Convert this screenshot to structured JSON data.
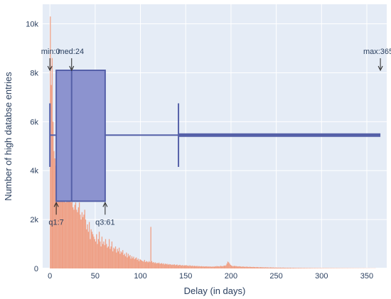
{
  "chart_data": {
    "type": "histogram_with_boxplot",
    "xlabel": "Delay (in days)",
    "ylabel": "Number of high databse entries",
    "xlim": [
      -8,
      372
    ],
    "ylim": [
      0,
      10800
    ],
    "x_ticks": [
      0,
      50,
      100,
      150,
      200,
      250,
      300,
      350
    ],
    "y_ticks": [
      0,
      2000,
      4000,
      6000,
      8000,
      10000
    ],
    "y_tick_labels": [
      "0",
      "2k",
      "4k",
      "6k",
      "8k",
      "10k"
    ],
    "grid": true,
    "colors": {
      "plot_bg": "#e5ecf6",
      "histogram": "#ef9f84",
      "box_fill": "#8c93cf",
      "box_line": "#5560a8",
      "text": "#2a3f5f"
    },
    "histogram": {
      "bin_width": 1,
      "x_start": 0,
      "values": [
        10300,
        7500,
        8600,
        6000,
        4800,
        4500,
        4200,
        3200,
        5800,
        4100,
        3500,
        3300,
        3100,
        3400,
        3000,
        2900,
        4000,
        2700,
        3100,
        2800,
        2900,
        3700,
        3200,
        2700,
        3500,
        2500,
        2400,
        2600,
        2700,
        2400,
        2300,
        2500,
        2700,
        2200,
        2000,
        2300,
        2100,
        2200,
        2400,
        2000,
        1600,
        1800,
        1500,
        1900,
        1200,
        1600,
        1500,
        1400,
        1300,
        1200,
        1100,
        1400,
        1000,
        1200,
        1500,
        1100,
        900,
        1300,
        1000,
        1100,
        950,
        1200,
        1000,
        850,
        900,
        1200,
        800,
        900,
        1100,
        700,
        850,
        800,
        900,
        650,
        800,
        700,
        850,
        600,
        700,
        650,
        750,
        550,
        600,
        500,
        650,
        450,
        600,
        500,
        550,
        400,
        500,
        420,
        480,
        380,
        420,
        450,
        350,
        400,
        300,
        380,
        350,
        320,
        300,
        280,
        350,
        260,
        300,
        280,
        250,
        300,
        260,
        1700,
        300,
        240,
        260,
        220,
        250,
        200,
        230,
        210,
        240,
        190,
        200,
        220,
        180,
        210,
        160,
        200,
        170,
        190,
        150,
        180,
        160,
        170,
        140,
        160,
        150,
        170,
        130,
        150,
        160,
        120,
        140,
        150,
        130,
        120,
        140,
        110,
        130,
        120,
        140,
        110,
        120,
        100,
        130,
        110,
        100,
        120,
        90,
        110,
        100,
        90,
        110,
        80,
        100,
        90,
        85,
        95,
        80,
        90,
        75,
        85,
        80,
        90,
        70,
        85,
        75,
        80,
        70,
        75,
        80,
        70,
        90,
        80,
        100,
        85,
        90,
        80,
        110,
        95,
        90,
        100,
        120,
        110,
        130,
        200,
        280,
        250,
        200,
        150,
        120,
        100,
        90,
        110,
        95,
        100,
        90,
        80,
        85,
        90,
        80,
        70,
        75,
        80,
        70,
        65,
        70,
        75,
        65,
        60,
        70,
        65,
        60,
        55,
        65,
        60,
        55,
        50,
        60,
        55,
        50,
        45,
        55,
        50,
        45,
        50,
        40,
        45,
        50,
        40,
        45,
        40,
        35,
        45,
        40,
        35,
        40,
        35,
        30,
        40,
        35,
        30,
        35,
        30,
        35,
        30,
        28,
        35,
        30,
        28,
        30,
        25,
        30,
        28,
        25,
        30,
        25,
        22,
        28,
        25,
        22,
        25,
        22,
        20,
        25,
        22,
        20,
        22,
        20,
        18,
        22,
        20,
        18,
        20,
        18,
        16,
        20,
        18,
        16,
        18,
        16,
        15,
        18,
        16,
        15,
        16,
        15,
        14,
        16,
        15,
        14,
        15,
        14,
        13,
        15,
        14,
        13,
        14,
        13,
        12,
        14,
        13,
        12,
        13,
        12,
        11,
        13,
        12,
        11,
        12,
        11,
        10,
        12,
        11,
        10,
        11,
        10,
        10,
        11,
        10,
        9,
        10,
        9,
        9,
        10,
        9,
        8,
        9,
        8,
        8,
        9,
        8,
        7,
        8,
        7,
        7,
        8,
        7,
        6,
        7,
        6,
        6,
        7,
        6,
        5,
        6,
        5,
        5,
        6,
        5
      ]
    },
    "boxplot": {
      "y_center": 5450,
      "y_bottom": 2750,
      "y_top": 8100,
      "whisker_half_height": 1300,
      "min": 0,
      "q1": 7,
      "median": 24,
      "q3": 61,
      "upper_fence": 142,
      "max": 365
    },
    "annotations": [
      {
        "label": "min:0",
        "x": 0,
        "position": "above"
      },
      {
        "label": "med:24",
        "x": 24,
        "position": "above"
      },
      {
        "label": "max:365",
        "x": 365,
        "position": "above"
      },
      {
        "label": "q1:7",
        "x": 7,
        "position": "below"
      },
      {
        "label": "q3:61",
        "x": 61,
        "position": "below"
      }
    ]
  }
}
